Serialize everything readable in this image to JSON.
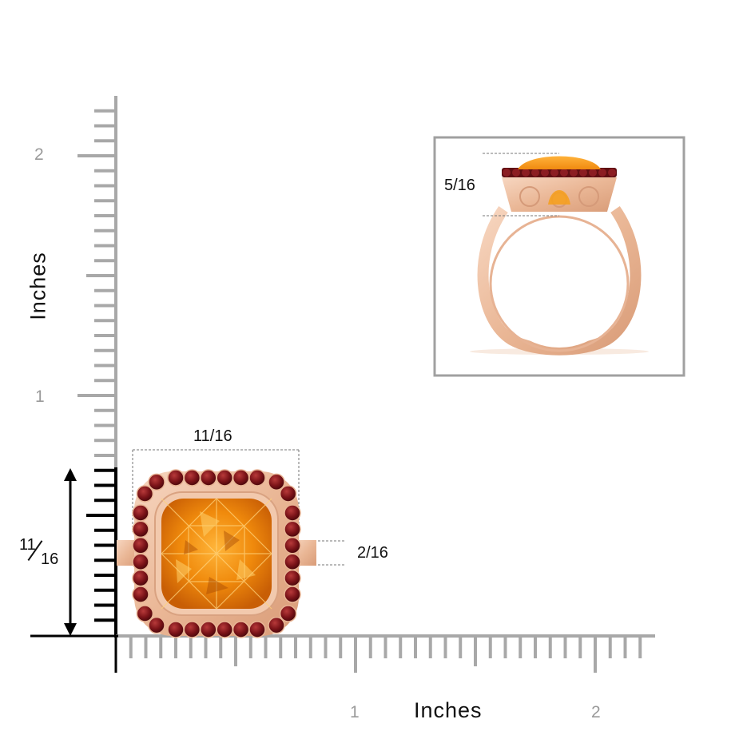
{
  "axes": {
    "y_label": "Inches",
    "x_label": "Inches",
    "y_ticks": [
      "2",
      "1"
    ],
    "x_ticks": [
      "1",
      "2"
    ]
  },
  "dimensions": {
    "width": "11/16",
    "height_whole": "11",
    "height_den": "16",
    "band_width": "2/16",
    "profile_height": "5/16"
  },
  "colors": {
    "ruler": "#a8a8a8",
    "axis_line": "#000000",
    "rose_gold": "#f0c3a5",
    "citrine": "#f59a1a",
    "garnet": "#7a1318",
    "frame": "#a0a0a0"
  }
}
